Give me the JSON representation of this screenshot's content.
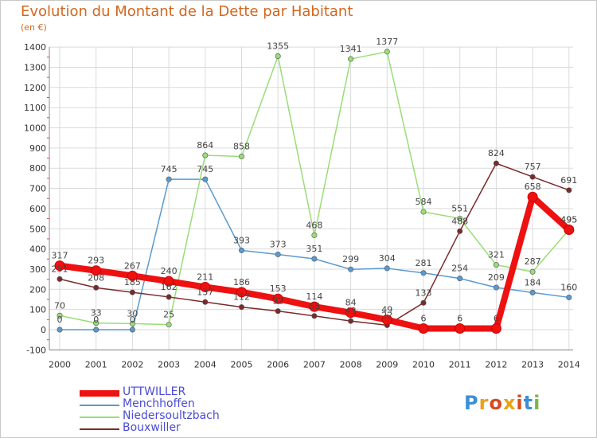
{
  "title": "Evolution du Montant de la Dette par Habitant",
  "unit": "(en €)",
  "logo_text": "Proxiti",
  "chart_data": {
    "type": "line",
    "title": "Evolution du Montant de la Dette par Habitant",
    "ylabel": "(en €)",
    "xlabel": "",
    "categories": [
      "2000",
      "2001",
      "2002",
      "2003",
      "2004",
      "2005",
      "2006",
      "2007",
      "2008",
      "2009",
      "2010",
      "2011",
      "2012",
      "2013",
      "2014"
    ],
    "ylim": [
      -100,
      1400
    ],
    "yticks": [
      -100,
      0,
      100,
      200,
      300,
      400,
      500,
      600,
      700,
      800,
      900,
      1000,
      1100,
      1200,
      1300,
      1400
    ],
    "grid": true,
    "legend_position": "bottom-left",
    "series": [
      {
        "name": "UTTWILLER",
        "color": "#ee1111",
        "values": [
          317,
          293,
          267,
          240,
          211,
          186,
          153,
          114,
          84,
          49,
          6,
          6,
          6,
          658,
          495
        ]
      },
      {
        "name": "Menchhoffen",
        "color": "#5a9ad0",
        "values": [
          0,
          0,
          0,
          745,
          745,
          393,
          373,
          351,
          299,
          304,
          281,
          254,
          209,
          184,
          160
        ]
      },
      {
        "name": "Niedersoultzbach",
        "color": "#99dd77",
        "values": [
          70,
          33,
          30,
          25,
          864,
          858,
          1355,
          468,
          1341,
          1377,
          584,
          551,
          321,
          287,
          495
        ]
      },
      {
        "name": "Bouxwiller",
        "color": "#7a2a2a",
        "values": [
          251,
          208,
          185,
          162,
          137,
          112,
          92,
          68,
          43,
          22,
          133,
          488,
          824,
          757,
          691
        ]
      }
    ]
  }
}
